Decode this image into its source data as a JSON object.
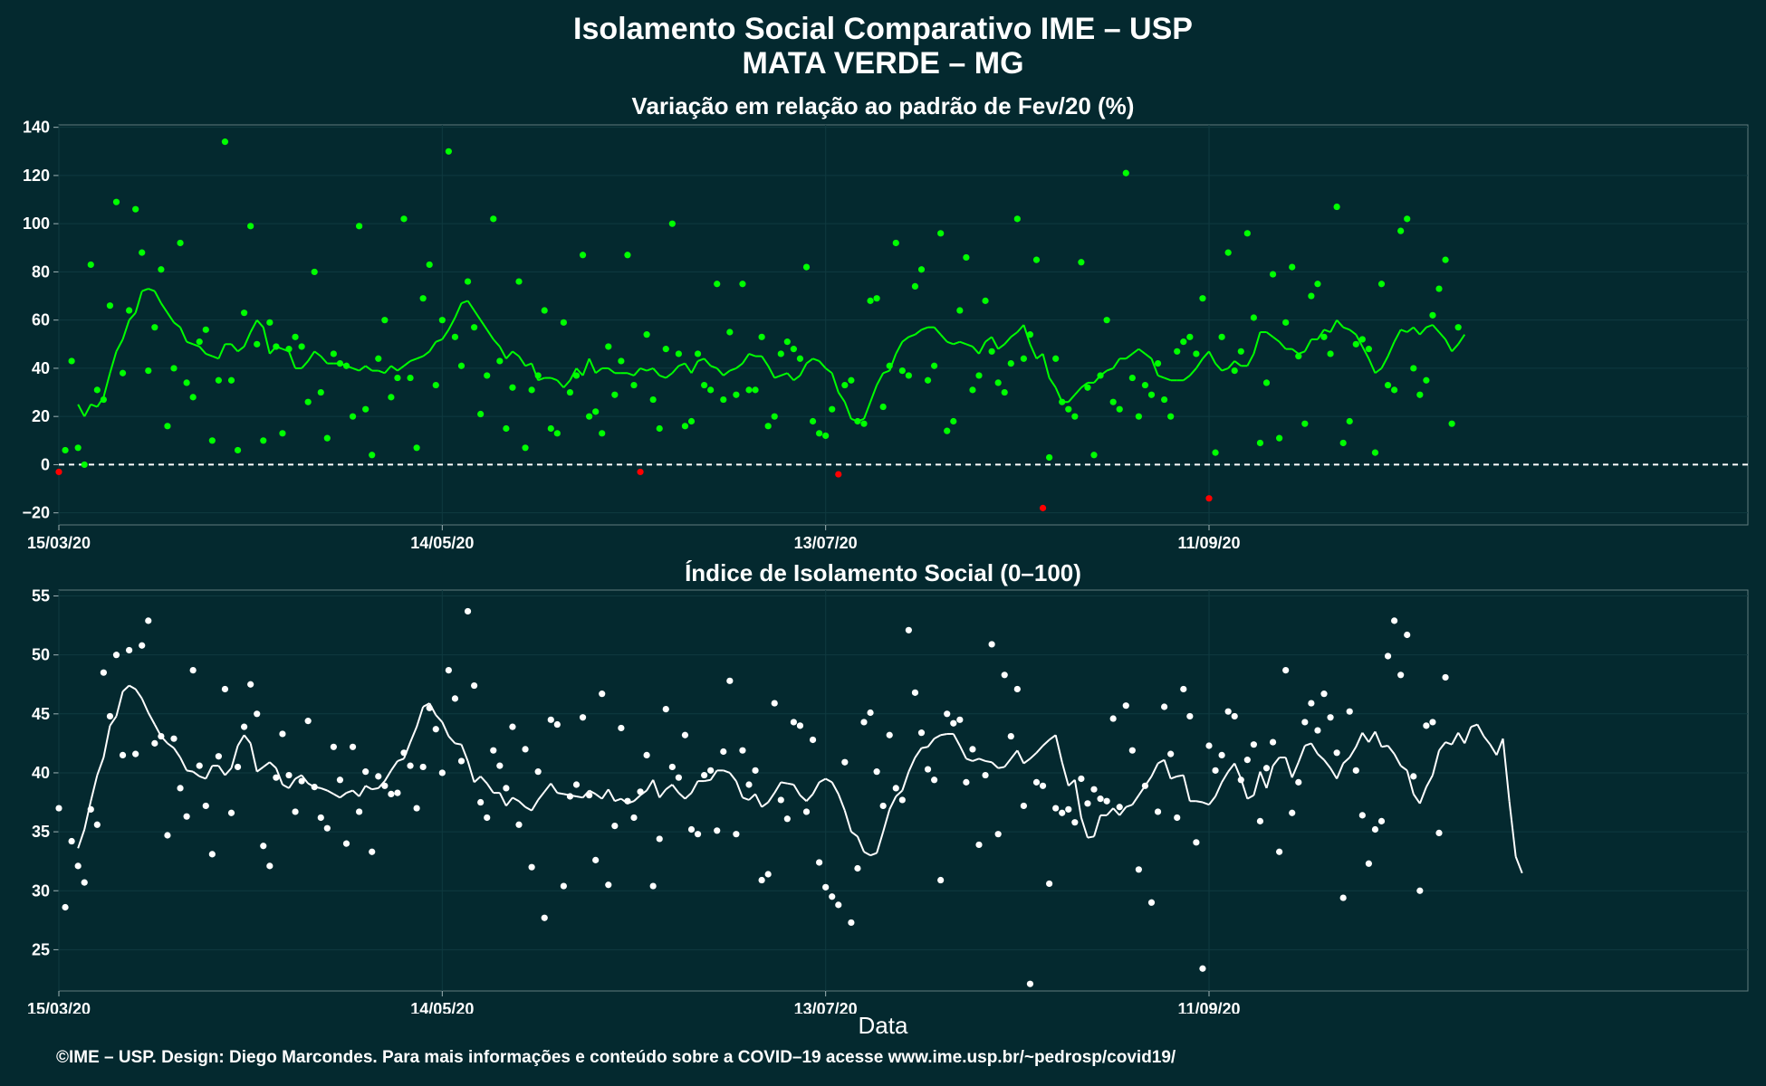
{
  "header": {
    "title": "Isolamento Social Comparativo IME – USP",
    "location": "MATA VERDE – MG"
  },
  "footer": {
    "xlabel": "Data",
    "credit": "©IME – USP. Design: Diego Marcondes. Para mais informações e conteúdo sobre a COVID–19 acesse www.ime.usp.br/~pedrosp/covid19/"
  },
  "colors": {
    "background": "#04292f",
    "positive": "#00ff00",
    "negative": "#ff0000",
    "index": "#ffffff",
    "zero_line": "#ffffff"
  },
  "chart_data": [
    {
      "type": "scatter",
      "title": "Variação em relação ao padrão de Fev/20 (%)",
      "xlabel": "",
      "ylabel": "",
      "x_tick_labels": [
        "15/03/20",
        "14/05/20",
        "13/07/20",
        "11/09/20"
      ],
      "y_ticks": [
        -20,
        0,
        20,
        40,
        60,
        80,
        100,
        120,
        140
      ],
      "ylim": [
        -25,
        141
      ],
      "grid": true,
      "reference_line": 0,
      "series": [
        {
          "kind": "daily_points",
          "x_start": "15/03/20",
          "values": [
            -3,
            6,
            43,
            7,
            0,
            83,
            31,
            27,
            66,
            109,
            38,
            64,
            106,
            88,
            39,
            57,
            81,
            16,
            40,
            92,
            34,
            28,
            51,
            56,
            10,
            35,
            134,
            35,
            6,
            63,
            99,
            50,
            10,
            59,
            49,
            13,
            48,
            53,
            49,
            26,
            80,
            30,
            11,
            46,
            42,
            41,
            20,
            99,
            23,
            4,
            44,
            60,
            28,
            36,
            102,
            36,
            7,
            69,
            83,
            33,
            60,
            130,
            53,
            41,
            76,
            57,
            21,
            37,
            102,
            43,
            15,
            32,
            76,
            7,
            31,
            37,
            64,
            15,
            13,
            59,
            30,
            37,
            87,
            20,
            22,
            13,
            49,
            29,
            43,
            87,
            33,
            -3,
            54,
            27,
            15,
            48,
            100,
            46,
            16,
            18,
            46,
            33,
            31,
            75,
            27,
            55,
            29,
            75,
            31,
            31,
            53,
            16,
            20,
            46,
            51,
            48,
            44,
            82,
            18,
            13,
            12,
            23,
            -4,
            33,
            35,
            18,
            17,
            68,
            69,
            24,
            41,
            92,
            39,
            37,
            74,
            81,
            35,
            41,
            96,
            14,
            18,
            64,
            86,
            31,
            37,
            68,
            47,
            34,
            30,
            42,
            102,
            44,
            54,
            85,
            -18,
            3,
            44,
            26,
            23,
            20,
            84,
            32,
            4,
            37,
            60,
            26,
            23,
            121,
            36,
            20,
            33,
            29,
            42,
            27,
            20,
            47,
            51,
            53,
            46,
            69,
            -14,
            5,
            53,
            88,
            39,
            47,
            96,
            61,
            9,
            34,
            79,
            11,
            59,
            82,
            45,
            17,
            70,
            75,
            53,
            46,
            107,
            9,
            18,
            50,
            52,
            48,
            5,
            75,
            33,
            31,
            97,
            102,
            40,
            29,
            35,
            62,
            73,
            85,
            17,
            57
          ]
        },
        {
          "kind": "moving_average",
          "x_start": "18/03/20",
          "values": [
            25,
            20,
            25,
            24,
            28,
            38,
            47,
            52,
            60,
            63,
            72,
            73,
            72,
            67,
            63,
            59,
            57,
            51,
            50,
            49,
            46,
            45,
            44,
            50,
            50,
            47,
            49,
            55,
            60,
            57,
            46,
            49,
            48,
            47,
            40,
            40,
            43,
            47,
            45,
            42,
            42,
            42,
            41,
            40,
            39,
            41,
            39,
            39,
            38,
            41,
            39,
            41,
            43,
            44,
            45,
            47,
            51,
            52,
            56,
            61,
            67,
            68,
            64,
            60,
            56,
            52,
            49,
            44,
            47,
            45,
            41,
            42,
            35,
            36,
            36,
            35,
            32,
            35,
            40,
            37,
            44,
            38,
            40,
            40,
            38,
            38,
            38,
            37,
            40,
            39,
            40,
            37,
            36,
            38,
            41,
            42,
            38,
            43,
            44,
            41,
            40,
            37,
            39,
            40,
            42,
            46,
            45,
            45,
            41,
            36,
            37,
            38,
            35,
            37,
            42,
            44,
            43,
            40,
            38,
            30,
            26,
            19,
            18,
            19,
            26,
            33,
            38,
            39,
            46,
            51,
            53,
            54,
            56,
            57,
            57,
            54,
            51,
            50,
            51,
            50,
            49,
            46,
            51,
            53,
            48,
            50,
            53,
            55,
            58,
            50,
            44,
            46,
            36,
            32,
            26,
            26,
            29,
            32,
            34,
            34,
            37,
            39,
            40,
            44,
            44,
            46,
            48,
            46,
            44,
            37,
            36,
            35,
            35,
            35,
            37,
            40,
            44,
            47,
            42,
            39,
            40,
            43,
            41,
            41,
            46,
            55,
            55,
            53,
            51,
            48,
            48,
            46,
            47,
            52,
            52,
            56,
            55,
            60,
            57,
            56,
            54,
            49,
            44,
            38,
            40,
            45,
            51,
            56,
            55,
            57,
            54,
            57,
            58,
            55,
            52,
            47,
            50,
            54
          ]
        }
      ]
    },
    {
      "type": "scatter",
      "title": "Índice de Isolamento Social (0–100)",
      "xlabel": "Data",
      "ylabel": "",
      "x_tick_labels": [
        "15/03/20",
        "14/05/20",
        "13/07/20",
        "11/09/20"
      ],
      "y_ticks": [
        25,
        30,
        35,
        40,
        45,
        50,
        55
      ],
      "ylim": [
        21.5,
        55.5
      ],
      "grid": true,
      "series": [
        {
          "kind": "daily_points",
          "x_start": "15/03/20",
          "values": [
            37,
            28.6,
            34.2,
            32.1,
            30.7,
            36.9,
            35.6,
            48.5,
            44.8,
            50,
            41.5,
            50.4,
            41.6,
            50.8,
            52.9,
            42.5,
            43.1,
            34.7,
            42.9,
            38.7,
            36.3,
            48.7,
            40.6,
            37.2,
            33.1,
            41.4,
            47.1,
            36.6,
            40.5,
            43.9,
            47.5,
            45,
            33.8,
            32.1,
            39.6,
            43.3,
            39.8,
            36.7,
            39.3,
            44.4,
            38.8,
            36.2,
            35.3,
            42.2,
            39.4,
            34,
            42.2,
            36.7,
            40.1,
            33.3,
            39.7,
            38.9,
            38.2,
            38.3,
            41.7,
            40.6,
            37,
            40.5,
            45.5,
            43.7,
            40,
            48.7,
            46.3,
            41,
            53.7,
            47.4,
            37.5,
            36.2,
            41.9,
            40.6,
            38.7,
            43.9,
            35.6,
            42,
            32,
            40.1,
            27.7,
            44.5,
            44.1,
            30.4,
            38,
            39,
            44.7,
            38.1,
            32.6,
            46.7,
            30.5,
            35.5,
            43.8,
            37.6,
            36.2,
            38.4,
            41.5,
            30.4,
            34.4,
            45.4,
            40.5,
            39.6,
            43.2,
            35.2,
            34.8,
            39.8,
            40.2,
            35.1,
            41.8,
            47.8,
            34.8,
            41.9,
            39,
            40.2,
            30.9,
            31.4,
            45.9,
            37.7,
            36.1,
            44.3,
            44,
            36.7,
            42.8,
            32.4,
            30.3,
            29.5,
            28.8,
            40.9,
            27.3,
            31.9,
            44.3,
            45.1,
            40.1,
            37.2,
            43.2,
            38.7,
            37.7,
            52.1,
            46.8,
            43.4,
            40.3,
            39.4,
            30.9,
            45,
            44.2,
            44.5,
            39.2,
            42,
            33.9,
            39.8,
            50.9,
            34.8,
            48.3,
            43.1,
            47.1,
            37.2,
            22.1,
            39.2,
            38.9,
            30.6,
            37,
            36.6,
            36.9,
            35.8,
            39.5,
            37.4,
            38.6,
            37.8,
            37.6,
            44.6,
            37.1,
            45.7,
            41.9,
            31.8,
            38.9,
            29,
            36.7,
            45.6,
            41.6,
            36.2,
            47.1,
            44.8,
            34.1,
            23.4,
            42.3,
            40.2,
            41.5,
            45.2,
            44.8,
            39.4,
            41.1,
            42.4,
            35.9,
            40.4,
            42.6,
            33.3,
            48.7,
            36.6,
            39.2,
            44.3,
            45.9,
            43.6,
            46.7,
            44.7,
            41.7,
            29.4,
            45.2,
            40.2,
            36.4,
            32.3,
            35.2,
            35.9,
            49.9,
            52.9,
            48.3,
            51.7,
            39.7,
            30,
            44,
            44.3,
            34.9,
            48.1
          ]
        },
        {
          "kind": "moving_average",
          "x_start": "18/03/20",
          "values": [
            33.6,
            35.2,
            37.6,
            39.8,
            41.3,
            44,
            44.8,
            46.9,
            47.4,
            47.1,
            46.3,
            45.1,
            44.1,
            43.1,
            42.5,
            42.1,
            41.3,
            40.2,
            40.1,
            39.7,
            39.5,
            40.6,
            40.6,
            39.8,
            40.4,
            42.3,
            43.2,
            42.5,
            40.1,
            40.5,
            40.9,
            40.4,
            39,
            38.7,
            39.5,
            39.8,
            39.1,
            38.8,
            38.7,
            38.5,
            38.2,
            37.9,
            38.3,
            38.5,
            38,
            38.9,
            38.6,
            38.7,
            39.3,
            40.2,
            41,
            41.2,
            42.6,
            43.9,
            45.6,
            45.9,
            44.9,
            44.3,
            43.1,
            42.5,
            42.4,
            41,
            39.2,
            39.7,
            39.1,
            38.3,
            38.3,
            37.2,
            37.9,
            37.6,
            37.1,
            36.8,
            37.7,
            38.4,
            39.1,
            38.3,
            38.2,
            38.1,
            38,
            37.9,
            38.5,
            38.2,
            37.8,
            38.6,
            37.6,
            37.8,
            37.4,
            37.6,
            38.1,
            38.5,
            39.4,
            37.9,
            38.6,
            39,
            38.3,
            37.8,
            38.3,
            39.3,
            39.3,
            39.4,
            40.2,
            40.2,
            40,
            39.3,
            37.9,
            37.7,
            38.2,
            37.1,
            37.5,
            38.3,
            39.2,
            39.1,
            39,
            38.1,
            37.6,
            38.2,
            39.2,
            39.5,
            39.2,
            38.2,
            36.8,
            35,
            34.6,
            33.3,
            33,
            33.2,
            35,
            36.9,
            38,
            38.5,
            40.1,
            41.3,
            42.1,
            42.2,
            42.9,
            43.2,
            43.3,
            43.3,
            42.3,
            41.2,
            41,
            41.2,
            41,
            40.9,
            40.4,
            40.5,
            41.2,
            41.9,
            40.8,
            41.2,
            41.7,
            42.3,
            42.8,
            43.2,
            40.9,
            38.9,
            39.4,
            36.2,
            34.5,
            34.6,
            36.4,
            36.4,
            37,
            36.4,
            37.1,
            37.3,
            38.1,
            38.9,
            39.7,
            40.8,
            41.1,
            39.5,
            39.7,
            39.8,
            37.6,
            37.6,
            37.5,
            37.3,
            38,
            39.2,
            40.1,
            40.8,
            39.5,
            37.8,
            38.1,
            40.1,
            38.7,
            40.6,
            41.3,
            41.3,
            39.6,
            40.9,
            42.3,
            42.5,
            41.6,
            41.1,
            40.4,
            39.5,
            40.8,
            41.3,
            42.2,
            43.4,
            42.6,
            43.5,
            42.2,
            42.3,
            41.6,
            40.6,
            40.2,
            38.2,
            37.4,
            38.8,
            39.8,
            41.9,
            42.6,
            42.4,
            43.4,
            42.5,
            43.9,
            44.1,
            43.1,
            42.4,
            41.5,
            42.9,
            37.6,
            32.9,
            31.5
          ]
        }
      ]
    }
  ]
}
